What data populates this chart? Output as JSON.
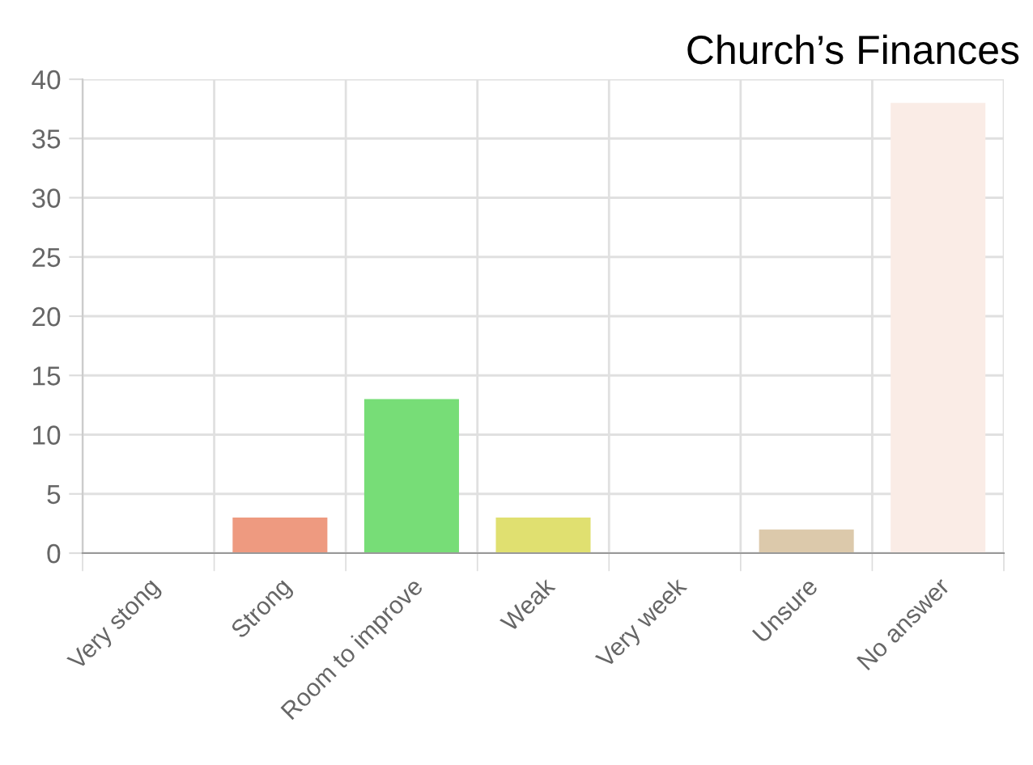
{
  "chart_data": {
    "type": "bar",
    "title": "Church’s Finances",
    "categories": [
      "Very stong",
      "Strong",
      "Room to improve",
      "Weak",
      "Very week",
      "Unsure",
      "No answer"
    ],
    "values": [
      0,
      3,
      13,
      3,
      0,
      2,
      38
    ],
    "colors": [
      "#f4a0a0",
      "#ee9a80",
      "#77dd77",
      "#e0e070",
      "#c0d0e0",
      "#dcc9ab",
      "#faece6"
    ],
    "ylim": [
      0,
      40
    ],
    "yticks": [
      0,
      5,
      10,
      15,
      20,
      25,
      30,
      35,
      40
    ],
    "grid": true
  }
}
